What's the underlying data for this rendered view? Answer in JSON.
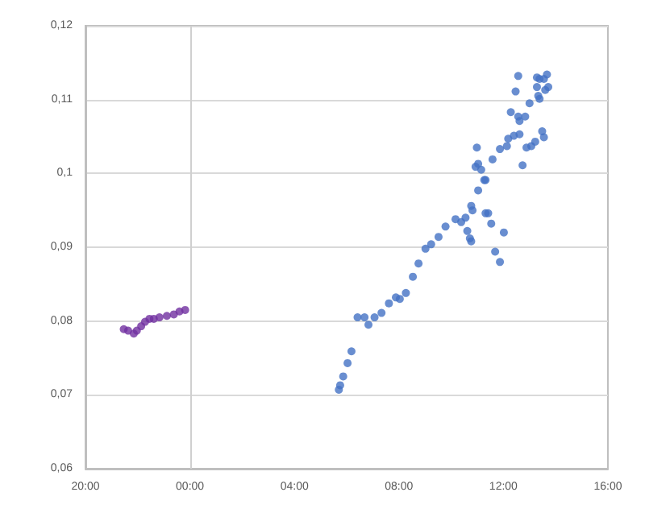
{
  "chart_data": {
    "type": "scatter",
    "xlim": [
      "--01-01T20:00",
      "--01-02T16:00"
    ],
    "ylim": [
      0.06,
      0.12
    ],
    "xticks": [
      {
        "value": "--01-01T20:00",
        "label": "20:00"
      },
      {
        "value": "--01-02T00:00",
        "label": "00:00"
      },
      {
        "value": "--01-02T04:00",
        "label": "04:00"
      },
      {
        "value": "--01-02T08:00",
        "label": "08:00"
      },
      {
        "value": "--01-02T12:00",
        "label": "12:00"
      },
      {
        "value": "--01-02T16:00",
        "label": "16:00"
      }
    ],
    "yticks": [
      {
        "value": 0.06,
        "label": "0,06"
      },
      {
        "value": 0.07,
        "label": "0,07"
      },
      {
        "value": 0.08,
        "label": "0,08"
      },
      {
        "value": 0.09,
        "label": "0,09"
      },
      {
        "value": 0.1,
        "label": "0,1"
      },
      {
        "value": 0.11,
        "label": "0,11"
      },
      {
        "value": 0.12,
        "label": "0,12"
      }
    ],
    "grid": "y",
    "marker": "circle",
    "ref_lines": [
      {
        "axis": "x",
        "value": "--01-02T00:00",
        "label": null,
        "color": "#d0d0d0"
      }
    ],
    "series": [
      {
        "color": "#7030a0",
        "x": [
          "--01-01T21:28",
          "--01-01T21:38",
          "--01-01T21:51",
          "--01-01T21:58",
          "--01-01T22:08",
          "--01-01T22:17",
          "--01-01T22:27",
          "--01-01T22:37",
          "--01-01T22:50",
          "--01-01T23:07",
          "--01-01T23:23",
          "--01-01T23:36",
          "--01-01T23:49"
        ],
        "values": [
          0.0789,
          0.0787,
          0.0783,
          0.0787,
          0.0793,
          0.0799,
          0.0803,
          0.0803,
          0.0805,
          0.0807,
          0.0809,
          0.0813,
          0.0815
        ]
      },
      {
        "color": "#4472c4",
        "x": [
          "--01-02T05:42",
          "--01-02T05:45",
          "--01-02T05:52",
          "--01-02T06:02",
          "--01-02T06:11",
          "--01-02T06:25",
          "--01-02T06:41",
          "--01-02T06:50",
          "--01-02T07:04",
          "--01-02T07:20",
          "--01-02T07:37",
          "--01-02T07:53",
          "--01-02T08:02",
          "--01-02T08:16",
          "--01-02T08:32",
          "--01-02T08:45",
          "--01-02T09:01",
          "--01-02T09:14",
          "--01-02T09:31",
          "--01-02T09:47",
          "--01-02T10:10",
          "--01-02T10:23",
          "--01-02T10:33",
          "--01-02T10:37",
          "--01-02T10:43",
          "--01-02T10:46",
          "--01-02T10:46",
          "--01-02T10:49",
          "--01-02T11:02",
          "--01-02T11:16",
          "--01-02T11:19",
          "--01-02T11:09",
          "--01-02T11:02",
          "--01-02T10:56",
          "--01-02T10:59",
          "--01-02T11:19",
          "--01-02T11:25",
          "--01-02T11:32",
          "--01-02T11:41",
          "--01-02T11:52",
          "--01-02T12:01",
          "--01-02T11:35",
          "--01-02T11:52",
          "--01-02T12:08",
          "--01-02T12:11",
          "--01-02T12:24",
          "--01-02T12:37",
          "--01-02T12:44",
          "--01-02T12:53",
          "--01-02T13:04",
          "--01-02T13:13",
          "--01-02T13:29",
          "--01-02T13:33",
          "--01-02T12:17",
          "--01-02T12:34",
          "--01-02T12:37",
          "--01-02T12:50",
          "--01-02T13:00",
          "--01-02T12:28",
          "--01-02T12:34",
          "--01-02T13:17",
          "--01-02T13:20",
          "--01-02T13:23",
          "--01-02T13:17",
          "--01-02T13:23",
          "--01-02T13:33",
          "--01-02T13:40",
          "--01-02T13:36",
          "--01-02T13:43"
        ],
        "values": [
          0.0707,
          0.0713,
          0.0725,
          0.0743,
          0.0759,
          0.0805,
          0.0805,
          0.0795,
          0.0805,
          0.0811,
          0.0824,
          0.0832,
          0.083,
          0.0838,
          0.086,
          0.0878,
          0.0898,
          0.0904,
          0.0914,
          0.0928,
          0.0938,
          0.0934,
          0.094,
          0.0922,
          0.0912,
          0.0908,
          0.0956,
          0.095,
          0.0977,
          0.0991,
          0.0991,
          0.1005,
          0.1013,
          0.1009,
          0.1035,
          0.0946,
          0.0946,
          0.0932,
          0.0894,
          0.088,
          0.092,
          0.1019,
          0.1033,
          0.1037,
          0.1047,
          0.1051,
          0.1053,
          0.1011,
          0.1035,
          0.1037,
          0.1043,
          0.1057,
          0.1049,
          0.1083,
          0.1077,
          0.1071,
          0.1077,
          0.1095,
          0.1111,
          0.1132,
          0.1117,
          0.1105,
          0.1101,
          0.113,
          0.1128,
          0.1128,
          0.1134,
          0.1113,
          0.1117
        ]
      }
    ]
  }
}
